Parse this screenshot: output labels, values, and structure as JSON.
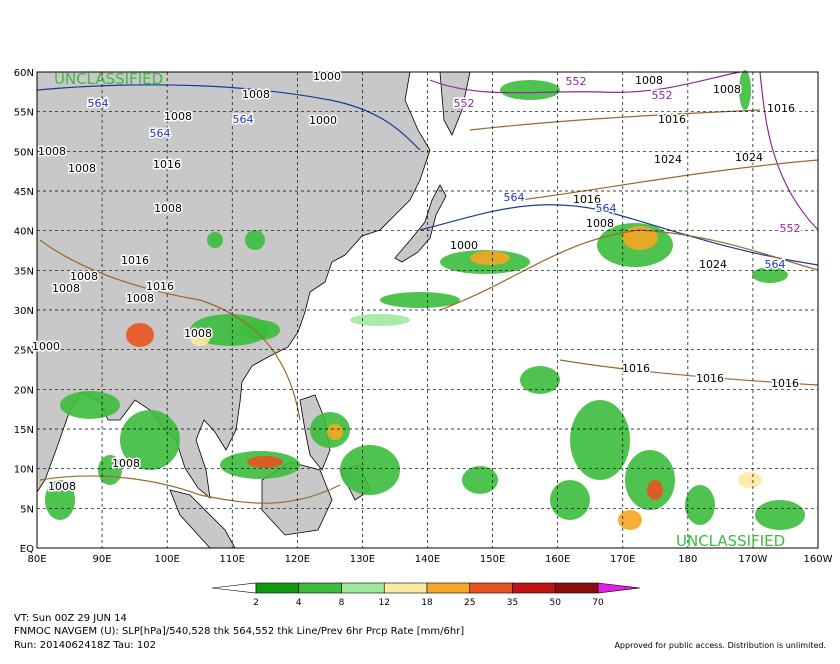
{
  "map": {
    "classification_top": "UNCLASSIFIED",
    "classification_bottom": "UNCLASSIFIED",
    "lat_labels": [
      "60N",
      "55N",
      "50N",
      "45N",
      "40N",
      "35N",
      "30N",
      "25N",
      "20N",
      "15N",
      "10N",
      "5N",
      "EQ"
    ],
    "lon_labels": [
      "80E",
      "90E",
      "100E",
      "110E",
      "120E",
      "130E",
      "140E",
      "150E",
      "160E",
      "170E",
      "180",
      "170W",
      "160W"
    ],
    "contour_labels": [
      "1000",
      "1008",
      "564",
      "1008",
      "1000",
      "1008",
      "564",
      "1016",
      "1008",
      "1008",
      "1016",
      "1016",
      "1008",
      "1008",
      "1008",
      "1000",
      "1008",
      "1008",
      "1008",
      "564",
      "1000",
      "552",
      "552",
      "1008",
      "1008",
      "552",
      "1016",
      "1016",
      "1024",
      "1024",
      "564",
      "1016",
      "564",
      "1008",
      "552",
      "1024",
      "564",
      "1016",
      "1016",
      "1016"
    ]
  },
  "colorbar": {
    "labels": [
      2,
      4,
      8,
      12,
      18,
      25,
      35,
      50,
      70
    ],
    "colors": [
      "#ffffff",
      "#0f9a10",
      "#3cbc3c",
      "#9ee89e",
      "#fbeba0",
      "#f5a623",
      "#e8531e",
      "#c01212",
      "#8e0c0c",
      "#e020e0"
    ]
  },
  "footer": {
    "valid_time": "VT: Sun 00Z 29 JUN 14",
    "description": "FNMOC NAVGEM (U): SLP[hPa]/540,528 thk 564,552 thk Line/Prev 6hr Prcp Rate [mm/6hr]",
    "run": "Run: 2014062418Z Tau: 102",
    "approval": "Approved for public access. Distribution is unlimited."
  }
}
